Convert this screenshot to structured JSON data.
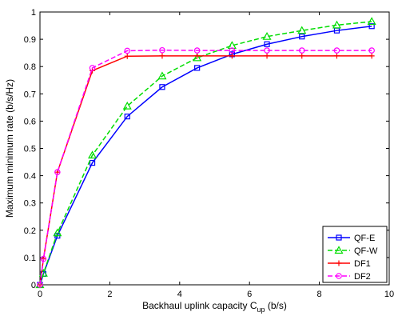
{
  "chart_data": {
    "type": "line",
    "xlabel_main": "Backhaul uplink capacity C",
    "xlabel_sub": "up",
    "xlabel_suffix": " (b/s)",
    "ylabel": "Maximum minimum rate (b/s/Hz)",
    "xlim": [
      0,
      10
    ],
    "ylim": [
      0,
      1
    ],
    "xticks": [
      0,
      2,
      4,
      6,
      8,
      10
    ],
    "yticks": [
      0,
      0.1,
      0.2,
      0.3,
      0.4,
      0.5,
      0.6,
      0.7,
      0.8,
      0.9,
      1
    ],
    "xtick_labels": [
      "0",
      "2",
      "4",
      "6",
      "8",
      "10"
    ],
    "ytick_labels": [
      "0",
      "0.1",
      "0.2",
      "0.3",
      "0.4",
      "0.5",
      "0.6",
      "0.7",
      "0.8",
      "0.9",
      "1"
    ],
    "grid": false,
    "legend_position": "bottom-right",
    "series": [
      {
        "name": "QF-E",
        "color": "#0000ff",
        "dash": "solid",
        "marker": "square",
        "x": [
          0,
          0.1,
          0.5,
          1.5,
          2.5,
          3.5,
          4.5,
          5.5,
          6.5,
          7.5,
          8.5,
          9.5
        ],
        "y": [
          0,
          0.04,
          0.18,
          0.447,
          0.617,
          0.725,
          0.795,
          0.845,
          0.882,
          0.91,
          0.932,
          0.948
        ]
      },
      {
        "name": "QF-W",
        "color": "#00dd00",
        "dash": "dashed",
        "marker": "triangle",
        "x": [
          0,
          0.1,
          0.5,
          1.5,
          2.5,
          3.5,
          4.5,
          5.5,
          6.5,
          7.5,
          8.5,
          9.5
        ],
        "y": [
          0,
          0.042,
          0.19,
          0.475,
          0.655,
          0.765,
          0.832,
          0.877,
          0.91,
          0.932,
          0.952,
          0.965
        ]
      },
      {
        "name": "DF1",
        "color": "#ff0000",
        "dash": "solid",
        "marker": "plus",
        "x": [
          0,
          0.1,
          0.5,
          1.5,
          2.5,
          3.5,
          4.5,
          5.5,
          6.5,
          7.5,
          8.5,
          9.5
        ],
        "y": [
          0,
          0.095,
          0.413,
          0.785,
          0.838,
          0.839,
          0.839,
          0.839,
          0.839,
          0.839,
          0.839,
          0.839
        ]
      },
      {
        "name": "DF2",
        "color": "#ff00ff",
        "dash": "dashed",
        "marker": "circle",
        "x": [
          0,
          0.1,
          0.5,
          1.5,
          2.5,
          3.5,
          4.5,
          5.5,
          6.5,
          7.5,
          8.5,
          9.5
        ],
        "y": [
          0,
          0.095,
          0.413,
          0.795,
          0.858,
          0.86,
          0.859,
          0.859,
          0.859,
          0.859,
          0.859,
          0.859
        ]
      }
    ]
  }
}
